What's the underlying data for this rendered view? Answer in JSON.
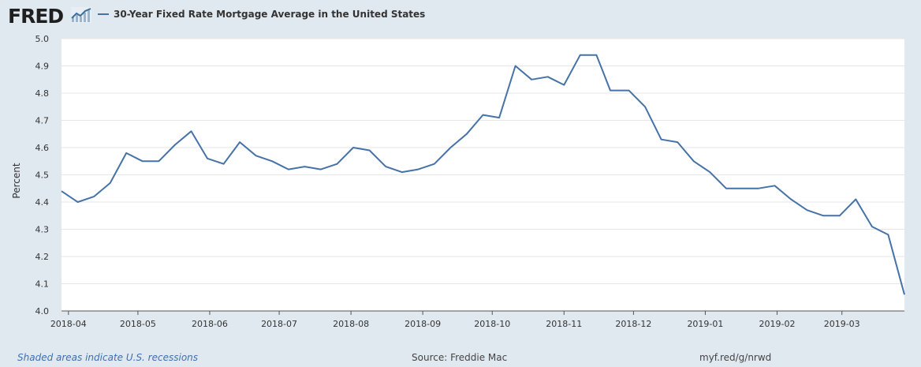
{
  "header": {
    "logo_text": "FRED",
    "logo_icon": "line-chart-icon",
    "legend_label": "30-Year Fixed Rate Mortgage Average in the United States"
  },
  "footer": {
    "recession_note": "Shaded areas indicate U.S. recessions",
    "source": "Source: Freddie Mac",
    "short_url": "myf.red/g/nrwd"
  },
  "colors": {
    "line": "#4572a7",
    "plot_bg": "#ffffff",
    "page_bg": "#e1e9f0",
    "grid": "#e6e6e6"
  },
  "chart_data": {
    "type": "line",
    "ylabel": "Percent",
    "ylim": [
      4.0,
      5.0
    ],
    "yticks": [
      "4.0",
      "4.1",
      "4.2",
      "4.3",
      "4.4",
      "4.5",
      "4.6",
      "4.7",
      "4.8",
      "4.9",
      "5.0"
    ],
    "xlim": [
      "2018-03-29",
      "2019-03-28"
    ],
    "xticks": [
      "2018-04",
      "2018-05",
      "2018-06",
      "2018-07",
      "2018-08",
      "2018-09",
      "2018-10",
      "2018-11",
      "2018-12",
      "2019-01",
      "2019-02",
      "2019-03"
    ],
    "grid": true,
    "series": [
      {
        "name": "30-Year Fixed Rate Mortgage Average in the United States",
        "x": [
          "2018-03-29",
          "2018-04-05",
          "2018-04-12",
          "2018-04-19",
          "2018-04-26",
          "2018-05-03",
          "2018-05-10",
          "2018-05-17",
          "2018-05-24",
          "2018-05-31",
          "2018-06-07",
          "2018-06-14",
          "2018-06-21",
          "2018-06-28",
          "2018-07-05",
          "2018-07-12",
          "2018-07-19",
          "2018-07-26",
          "2018-08-02",
          "2018-08-09",
          "2018-08-16",
          "2018-08-23",
          "2018-08-30",
          "2018-09-06",
          "2018-09-13",
          "2018-09-20",
          "2018-09-27",
          "2018-10-04",
          "2018-10-11",
          "2018-10-18",
          "2018-10-25",
          "2018-11-01",
          "2018-11-08",
          "2018-11-15",
          "2018-11-21",
          "2018-11-29",
          "2018-12-06",
          "2018-12-13",
          "2018-12-20",
          "2018-12-27",
          "2019-01-03",
          "2019-01-10",
          "2019-01-17",
          "2019-01-24",
          "2019-01-31",
          "2019-02-07",
          "2019-02-14",
          "2019-02-21",
          "2019-02-28",
          "2019-03-07",
          "2019-03-14",
          "2019-03-21",
          "2019-03-28"
        ],
        "values": [
          4.44,
          4.4,
          4.42,
          4.47,
          4.58,
          4.55,
          4.55,
          4.61,
          4.66,
          4.56,
          4.54,
          4.62,
          4.57,
          4.55,
          4.52,
          4.53,
          4.52,
          4.54,
          4.6,
          4.59,
          4.53,
          4.51,
          4.52,
          4.54,
          4.6,
          4.65,
          4.72,
          4.71,
          4.9,
          4.85,
          4.86,
          4.83,
          4.94,
          4.94,
          4.81,
          4.81,
          4.75,
          4.63,
          4.62,
          4.55,
          4.51,
          4.45,
          4.45,
          4.45,
          4.46,
          4.41,
          4.37,
          4.35,
          4.35,
          4.41,
          4.31,
          4.28,
          4.06
        ]
      }
    ]
  }
}
